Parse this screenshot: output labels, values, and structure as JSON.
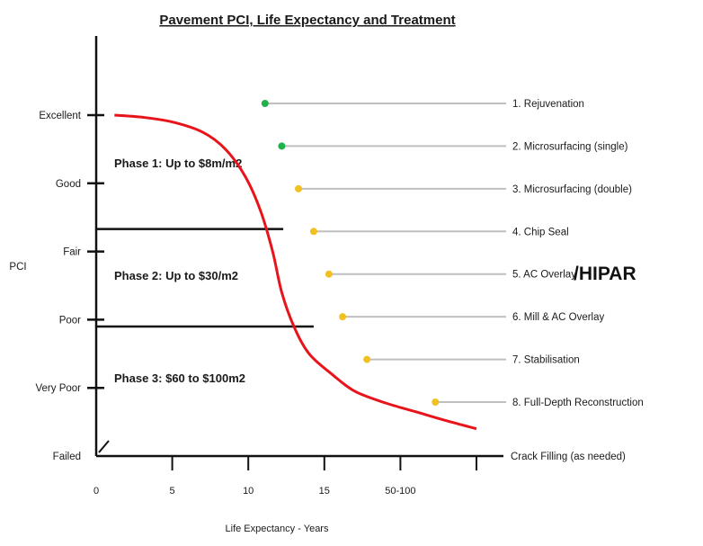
{
  "chart_data": {
    "type": "line",
    "title": "Pavement PCI, Life Expectancy and Treatment",
    "xlabel": "Life Expectancy - Years",
    "ylabel": "PCI",
    "x_ticks": [
      "0",
      "5",
      "10",
      "15",
      "50-100"
    ],
    "y_categories": [
      "Failed",
      "Very Poor",
      "Poor",
      "Fair",
      "Good",
      "Excellent"
    ],
    "xlim": [
      0,
      25
    ],
    "ylim": [
      0,
      5
    ],
    "series": [
      {
        "color": "#e8141b",
        "points": [
          [
            1.2,
            5.0
          ],
          [
            3,
            4.97
          ],
          [
            5,
            4.9
          ],
          [
            7,
            4.75
          ],
          [
            8.5,
            4.5
          ],
          [
            9.8,
            4.1
          ],
          [
            10.8,
            3.6
          ],
          [
            11.6,
            3.0
          ],
          [
            12.2,
            2.4
          ],
          [
            13,
            1.9
          ],
          [
            14,
            1.5
          ],
          [
            15.5,
            1.2
          ],
          [
            17,
            0.95
          ],
          [
            19,
            0.78
          ],
          [
            21,
            0.65
          ],
          [
            23,
            0.52
          ],
          [
            25,
            0.4
          ]
        ]
      }
    ],
    "phase_lines": [
      {
        "y": 3.33,
        "x_end": 12.3
      },
      {
        "y": 1.9,
        "x_end": 14.3
      }
    ],
    "phases": [
      {
        "label": "Phase 1: Up to $8m/m2",
        "y": 4.3
      },
      {
        "label": "Phase 2: Up to $30/m2",
        "y": 2.65
      },
      {
        "label": "Phase 3: $60 to $100m2",
        "y": 1.15
      }
    ],
    "treatments": [
      {
        "label": "1. Rejuvenation",
        "x": 11.1,
        "color": "#1fb24a"
      },
      {
        "label": "2. Microsurfacing (single)",
        "x": 12.2,
        "color": "#1fb24a"
      },
      {
        "label": "3. Microsurfacing (double)",
        "x": 13.3,
        "color": "#f2c020"
      },
      {
        "label": "4. Chip Seal",
        "x": 14.3,
        "color": "#f2c020"
      },
      {
        "label": "5. AC Overlay",
        "x": 15.3,
        "color": "#f2c020"
      },
      {
        "label": "6. Mill & AC Overlay",
        "x": 16.2,
        "color": "#f2c020"
      },
      {
        "label": "7. Stabilisation",
        "x": 17.8,
        "color": "#f2c020"
      },
      {
        "label": "8. Full-Depth Reconstruction",
        "x": 22.3,
        "color": "#f2c020"
      }
    ],
    "baseline_label": "Crack Filling (as needed)",
    "overlay_text": "/HIPAR",
    "grid": false
  }
}
